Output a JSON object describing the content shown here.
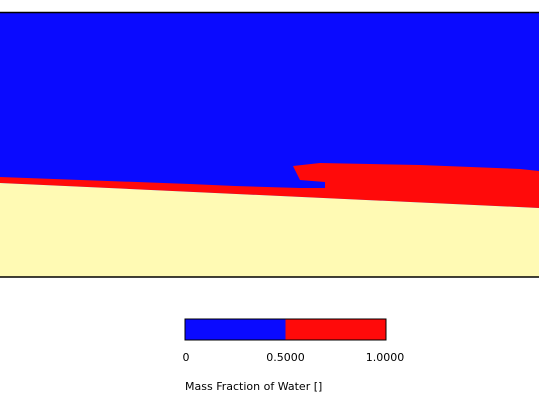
{
  "legend": {
    "title": "Mass Fraction of Water []",
    "ticks": [
      "0",
      "0.5000",
      "1.0000"
    ],
    "colors": [
      "#0a0aff",
      "#ff0a0a"
    ]
  }
}
